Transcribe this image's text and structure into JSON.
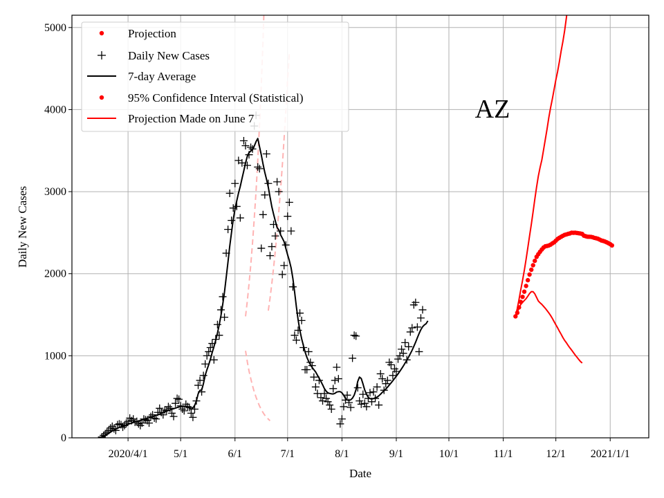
{
  "colors": {
    "projection": "#ff0000",
    "ci_faint": "#ffb3b3",
    "cases": "#000000",
    "grid": "#b0b0b0"
  },
  "chart_data": {
    "type": "line",
    "title": "",
    "xlabel": "Date",
    "ylabel": "Daily New Cases",
    "annotation": "AZ",
    "xlim_days": [
      -32,
      297
    ],
    "ylim": [
      0,
      5150
    ],
    "yticks": [
      0,
      1000,
      2000,
      3000,
      4000,
      5000
    ],
    "xticks": [
      {
        "day": 0,
        "label": "2020/4/1"
      },
      {
        "day": 30,
        "label": "5/1"
      },
      {
        "day": 61,
        "label": "6/1"
      },
      {
        "day": 91,
        "label": "7/1"
      },
      {
        "day": 122,
        "label": "8/1"
      },
      {
        "day": 153,
        "label": "9/1"
      },
      {
        "day": 183,
        "label": "10/1"
      },
      {
        "day": 214,
        "label": "11/1"
      },
      {
        "day": 244,
        "label": "12/1"
      },
      {
        "day": 275,
        "label": "2021/1/1"
      }
    ],
    "legend": {
      "position": "top-left",
      "entries": [
        {
          "label": "Projection",
          "marker": "dot"
        },
        {
          "label": "Daily New Cases",
          "marker": "plus"
        },
        {
          "label": "7-day Average",
          "marker": "black-line"
        },
        {
          "label": "95% Confidence Interval (Statistical)",
          "marker": "dot"
        },
        {
          "label": "Projection Made on June 7",
          "marker": "red-line"
        }
      ]
    },
    "series": {
      "daily_new_cases": {
        "x_day_offset": -15,
        "values": [
          10,
          30,
          50,
          70,
          90,
          120,
          140,
          110,
          90,
          160,
          170,
          160,
          130,
          150,
          180,
          200,
          240,
          210,
          230,
          190,
          200,
          170,
          150,
          180,
          230,
          220,
          210,
          180,
          260,
          280,
          240,
          230,
          310,
          360,
          310,
          280,
          340,
          330,
          380,
          360,
          300,
          260,
          420,
          480,
          470,
          390,
          350,
          330,
          410,
          380,
          370,
          300,
          250,
          350,
          450,
          640,
          700,
          560,
          760,
          900,
          1000,
          1050,
          1100,
          1150,
          950,
          1200,
          1380,
          1250,
          1560,
          1720,
          1470,
          2250,
          2540,
          2980,
          2650,
          2800,
          3100,
          2820,
          3380,
          2680,
          3350,
          3620,
          3560,
          3320,
          3450,
          3540,
          3520,
          3800,
          3930,
          3300,
          3280,
          2310,
          2720,
          2960,
          3460,
          3100,
          2220,
          2330,
          2600,
          2460,
          3120,
          3000,
          2520,
          1990,
          2100,
          2350,
          2700,
          2870,
          2520,
          1840,
          1250,
          1190,
          1310,
          1520,
          1430,
          1100,
          830,
          830,
          1050,
          920,
          880,
          740,
          620,
          540,
          700,
          490,
          450,
          540,
          480,
          440,
          400,
          350,
          600,
          700,
          860,
          720,
          170,
          230,
          380,
          460,
          520,
          430,
          370,
          970,
          1250,
          1240,
          610,
          450,
          410,
          530,
          420,
          380,
          480,
          550,
          440,
          560,
          480,
          620,
          400,
          780,
          720,
          580,
          660,
          700,
          920,
          890,
          760,
          840,
          810,
          960,
          1000,
          1080,
          1030,
          1160,
          950,
          1110,
          1290,
          1340,
          1620,
          1650,
          1350,
          1050,
          1460,
          1560
        ]
      },
      "seven_day_average": {
        "x_day_offset": -15,
        "values": [
          10,
          19,
          29,
          41,
          55,
          69,
          83,
          95,
          106,
          117,
          126,
          135,
          142,
          149,
          157,
          165,
          172,
          179,
          186,
          192,
          198,
          205,
          211,
          219,
          227,
          233,
          238,
          244,
          250,
          258,
          265,
          274,
          282,
          290,
          299,
          308,
          317,
          325,
          333,
          340,
          348,
          355,
          362,
          369,
          375,
          380,
          384,
          386,
          384,
          376,
          363,
          348,
          363,
          395,
          450,
          537,
          579,
          583,
          659,
          763,
          830,
          890,
          960,
          1040,
          1110,
          1190,
          1277,
          1376,
          1492,
          1625,
          1772,
          1959,
          2141,
          2331,
          2501,
          2660,
          2788,
          2888,
          2982,
          3065,
          3160,
          3250,
          3350,
          3430,
          3475,
          3495,
          3512,
          3555,
          3610,
          3648,
          3548,
          3447,
          3336,
          3237,
          3148,
          3055,
          2935,
          2816,
          2727,
          2642,
          2562,
          2535,
          2473,
          2433,
          2391,
          2308,
          2231,
          2160,
          2070,
          1944,
          1781,
          1596,
          1440,
          1311,
          1209,
          1126,
          1046,
          980,
          932,
          890,
          858,
          830,
          802,
          764,
          727,
          686,
          646,
          600,
          568,
          548,
          541,
          536,
          534,
          542,
          558,
          562,
          563,
          549,
          518,
          480,
          462,
          455,
          464,
          484,
          520,
          586,
          687,
          740,
          722,
          657,
          583,
          530,
          494,
          477,
          474,
          478,
          487,
          496,
          512,
          532,
          555,
          573,
          595,
          618,
          643,
          669,
          695,
          722,
          751,
          780,
          810,
          842,
          875,
          910,
          946,
          984,
          1024,
          1067,
          1114,
          1166,
          1219,
          1271,
          1318,
          1354,
          1376,
          1392,
          1425
        ]
      },
      "projection": {
        "x_day_offset": 221,
        "values": [
          1480,
          1524,
          1590,
          1656,
          1718,
          1781,
          1851,
          1921,
          1990,
          2048,
          2103,
          2157,
          2206,
          2238,
          2267,
          2295,
          2320,
          2334,
          2338,
          2344,
          2354,
          2369,
          2382,
          2402,
          2423,
          2438,
          2450,
          2462,
          2473,
          2479,
          2486,
          2491,
          2500,
          2498,
          2500,
          2497,
          2493,
          2490,
          2485,
          2464,
          2457,
          2451,
          2450,
          2449,
          2444,
          2437,
          2432,
          2426,
          2416,
          2405,
          2400,
          2392,
          2383,
          2372,
          2360,
          2345
        ]
      },
      "ci_upper": {
        "x_day_offset": 221,
        "values": [
          1480,
          1576,
          1686,
          1804,
          1918,
          2038,
          2175,
          2315,
          2459,
          2603,
          2752,
          2906,
          3057,
          3189,
          3293,
          3387,
          3511,
          3636,
          3767,
          3904,
          4022,
          4131,
          4246,
          4360,
          4465,
          4582,
          4715,
          4829,
          4959,
          5121,
          5310
        ]
      },
      "ci_lower": {
        "x_day_offset": 221,
        "values": [
          1480,
          1530,
          1583,
          1625,
          1650,
          1673,
          1696,
          1726,
          1758,
          1782,
          1781,
          1755,
          1710,
          1667,
          1645,
          1626,
          1602,
          1578,
          1550,
          1522,
          1491,
          1455,
          1416,
          1378,
          1340,
          1300,
          1262,
          1222,
          1188,
          1158,
          1126,
          1097,
          1069,
          1039,
          1011,
          983,
          957,
          931,
          911
        ]
      },
      "june7_ci_upper": {
        "x_day_offset": 67,
        "values": [
          1480,
          1662,
          1874,
          2111,
          2376,
          2674,
          3005,
          3385,
          3815,
          4300,
          4850,
          5500,
          6200
        ]
      },
      "june7_ci_faint_upper": {
        "x_day_offset": 80,
        "values": [
          1550,
          1700,
          1880,
          2070,
          2280,
          2510,
          2760,
          3030,
          3320,
          3640,
          3990,
          4360,
          4680
        ]
      },
      "june7_ci_lower": {
        "x_day_offset": 67,
        "values": [
          1060,
          930,
          815,
          720,
          635,
          560,
          495,
          438,
          388,
          345,
          308,
          276,
          250,
          228,
          208
        ]
      }
    }
  }
}
